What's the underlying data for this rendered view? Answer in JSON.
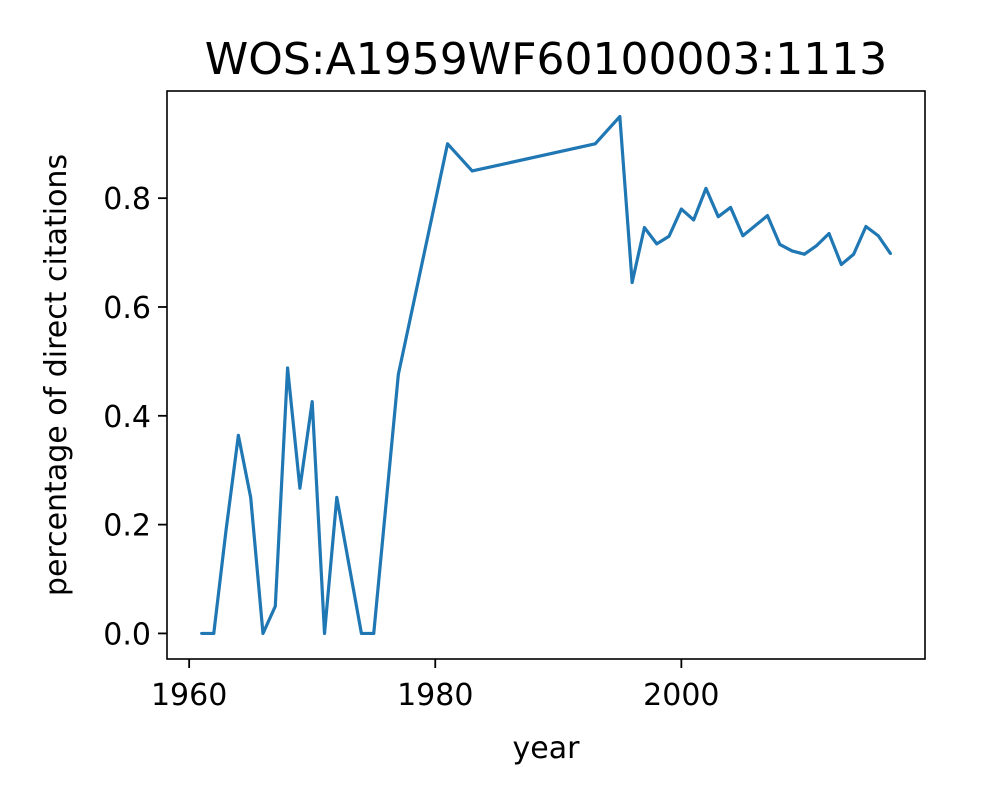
{
  "chart_data": {
    "type": "line",
    "title": "WOS:A1959WF60100003:1113",
    "xlabel": "year",
    "ylabel": "percentage of direct citations",
    "xlim": [
      1958.2,
      2019.8
    ],
    "ylim": [
      -0.047,
      0.997
    ],
    "xticks": [
      1960,
      1980,
      2000
    ],
    "xtick_labels": [
      "1960",
      "1980",
      "2000"
    ],
    "yticks": [
      0.0,
      0.2,
      0.4,
      0.6,
      0.8
    ],
    "ytick_labels": [
      "0.0",
      "0.2",
      "0.4",
      "0.6",
      "0.8"
    ],
    "grid": false,
    "legend": "none",
    "series": [
      {
        "color": "#1f77b4",
        "x": [
          1961,
          1962,
          1963,
          1964,
          1965,
          1966,
          1967,
          1968,
          1969,
          1970,
          1971,
          1972,
          1974,
          1975,
          1977,
          1981,
          1983,
          1993,
          1995,
          1996,
          1997,
          1998,
          1999,
          2000,
          2001,
          2002,
          2003,
          2004,
          2005,
          2007,
          2008,
          2009,
          2010,
          2011,
          2012,
          2013,
          2014,
          2015,
          2016,
          2017
        ],
        "y": [
          0.0,
          0.0,
          0.19,
          0.364,
          0.25,
          0.0,
          0.05,
          0.488,
          0.267,
          0.426,
          0.0,
          0.25,
          0.0,
          0.0,
          0.476,
          0.9,
          0.85,
          0.9,
          0.95,
          0.645,
          0.746,
          0.716,
          0.73,
          0.78,
          0.76,
          0.818,
          0.766,
          0.783,
          0.731,
          0.768,
          0.715,
          0.703,
          0.697,
          0.713,
          0.735,
          0.678,
          0.697,
          0.748,
          0.731,
          0.698
        ]
      }
    ]
  }
}
